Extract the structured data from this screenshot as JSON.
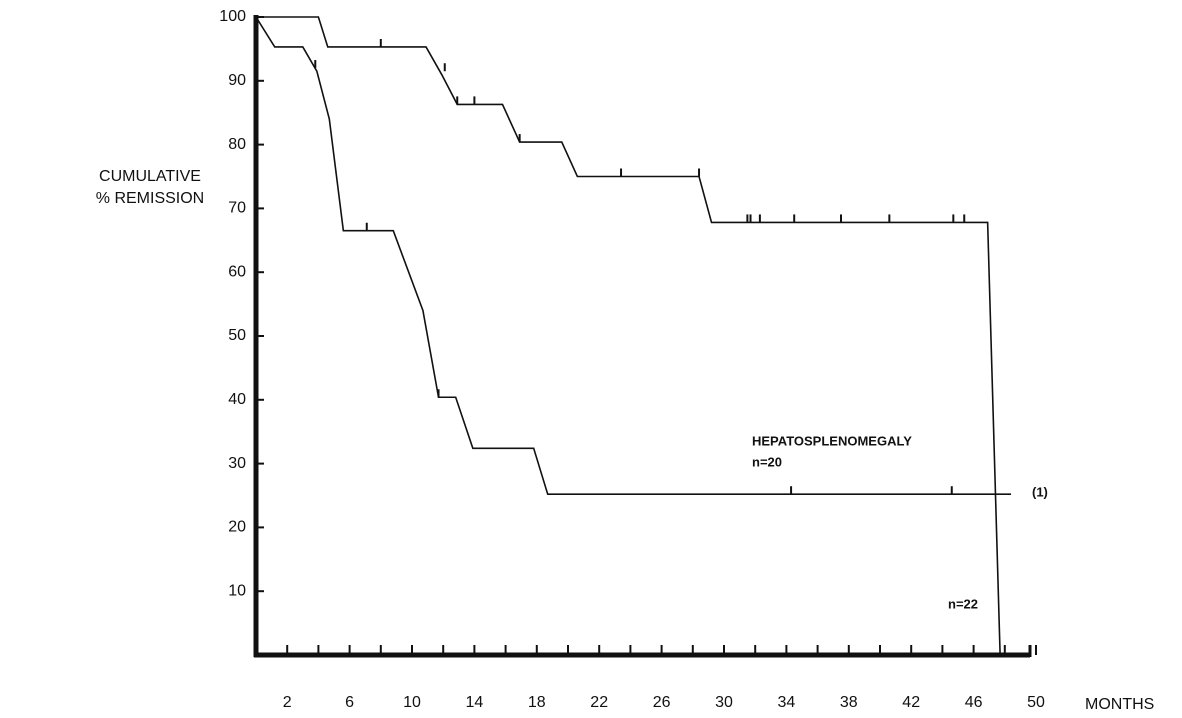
{
  "chart_data": {
    "type": "line",
    "y_label": [
      "CUMULATIVE",
      "% REMISSION"
    ],
    "x_label": "MONTHS",
    "xlim": [
      0,
      50
    ],
    "ylim": [
      0,
      100
    ],
    "xticks": [
      2,
      6,
      10,
      14,
      18,
      22,
      26,
      30,
      34,
      38,
      42,
      46,
      50
    ],
    "xminorticks": [
      4,
      8,
      12,
      16,
      20,
      24,
      28,
      32,
      36,
      40,
      44,
      48
    ],
    "yticks": [
      10,
      20,
      30,
      40,
      50,
      60,
      70,
      80,
      90,
      100
    ],
    "series": [
      {
        "color": "#111",
        "x": [
          0,
          4,
          4.6,
          10.9,
          11.9,
          12.9,
          15.8,
          16.9,
          19.6,
          20.6,
          28.4,
          29.2,
          46.9,
          47.7
        ],
        "values": [
          100,
          100,
          95.3,
          95.3,
          91,
          86.3,
          86.3,
          80.4,
          80.4,
          75,
          75,
          67.8,
          67.8,
          0
        ],
        "censored": {
          "x": [
            8,
            12.1,
            12.9,
            14,
            16.9,
            23.4,
            28.4,
            31.5,
            31.7,
            32.3,
            34.5,
            37.5,
            40.6,
            44.7,
            45.4
          ],
          "values": [
            95.3,
            91.5,
            86.3,
            86.3,
            80.4,
            75,
            75,
            67.8,
            67.8,
            67.8,
            67.8,
            67.8,
            67.8,
            67.8,
            67.8
          ]
        }
      },
      {
        "color": "#111",
        "x": [
          0,
          1.2,
          3,
          3.9,
          4.7,
          5.6,
          8.8,
          10.7,
          11.7,
          12.8,
          13.9,
          17.8,
          18.7,
          48.4
        ],
        "values": [
          100,
          95.3,
          95.3,
          91.5,
          84,
          66.5,
          66.5,
          54,
          40.4,
          40.4,
          32.4,
          32.4,
          25.2,
          25.2
        ],
        "censored": {
          "x": [
            3.8,
            7.1,
            11.7,
            34.3,
            44.6
          ],
          "values": [
            92,
            66.5,
            40.4,
            25.2,
            25.2
          ]
        }
      }
    ],
    "annotations": [
      "HEPATOSPLENOMEGALY",
      "n=20",
      "n=22",
      "(1)"
    ]
  }
}
